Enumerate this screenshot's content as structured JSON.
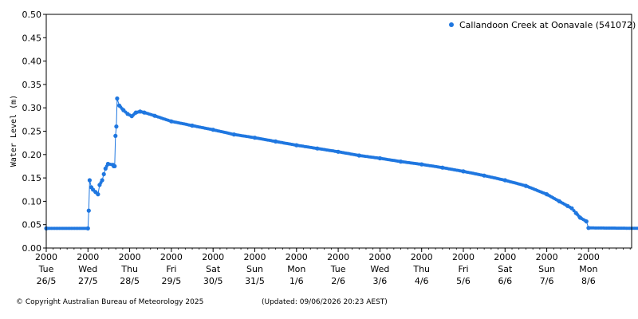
{
  "chart_data": {
    "type": "scatter",
    "ylabel": "Water Level (m)",
    "ylim": [
      0,
      0.5
    ],
    "yticks": [
      "0.00",
      "0.05",
      "0.10",
      "0.15",
      "0.20",
      "0.25",
      "0.30",
      "0.35",
      "0.40",
      "0.45",
      "0.50"
    ],
    "xlim_days": [
      0,
      14.5
    ],
    "xticks": [
      {
        "time": "2000",
        "day": "Tue",
        "date": "26/5"
      },
      {
        "time": "2000",
        "day": "Wed",
        "date": "27/5"
      },
      {
        "time": "2000",
        "day": "Thu",
        "date": "28/5"
      },
      {
        "time": "2000",
        "day": "Fri",
        "date": "29/5"
      },
      {
        "time": "2000",
        "day": "Sat",
        "date": "30/5"
      },
      {
        "time": "2000",
        "day": "Sun",
        "date": "31/5"
      },
      {
        "time": "2000",
        "day": "Mon",
        "date": "1/6"
      },
      {
        "time": "2000",
        "day": "Tue",
        "date": "2/6"
      },
      {
        "time": "2000",
        "day": "Wed",
        "date": "3/6"
      },
      {
        "time": "2000",
        "day": "Thu",
        "date": "4/6"
      },
      {
        "time": "2000",
        "day": "Fri",
        "date": "5/6"
      },
      {
        "time": "2000",
        "day": "Sat",
        "date": "6/6"
      },
      {
        "time": "2000",
        "day": "Sun",
        "date": "7/6"
      },
      {
        "time": "2000",
        "day": "Mon",
        "date": "8/6"
      }
    ],
    "grid": false,
    "legend_position": "top-right",
    "series": [
      {
        "name": "Callandoon Creek at Oonavale (541072)",
        "color": "#1f77e0",
        "points": [
          [
            0.0,
            0.042
          ],
          [
            1.0,
            0.042
          ],
          [
            1.02,
            0.08
          ],
          [
            1.04,
            0.145
          ],
          [
            1.08,
            0.13
          ],
          [
            1.12,
            0.125
          ],
          [
            1.18,
            0.12
          ],
          [
            1.24,
            0.115
          ],
          [
            1.28,
            0.135
          ],
          [
            1.34,
            0.145
          ],
          [
            1.38,
            0.158
          ],
          [
            1.42,
            0.17
          ],
          [
            1.48,
            0.18
          ],
          [
            1.6,
            0.178
          ],
          [
            1.62,
            0.175
          ],
          [
            1.64,
            0.175
          ],
          [
            1.66,
            0.24
          ],
          [
            1.68,
            0.26
          ],
          [
            1.7,
            0.32
          ],
          [
            1.75,
            0.305
          ],
          [
            1.85,
            0.295
          ],
          [
            1.95,
            0.287
          ],
          [
            2.05,
            0.282
          ],
          [
            2.15,
            0.29
          ],
          [
            2.25,
            0.292
          ],
          [
            2.35,
            0.29
          ],
          [
            2.6,
            0.283
          ],
          [
            3.0,
            0.271
          ],
          [
            3.5,
            0.262
          ],
          [
            4.0,
            0.253
          ],
          [
            4.5,
            0.243
          ],
          [
            5.0,
            0.236
          ],
          [
            5.5,
            0.228
          ],
          [
            6.0,
            0.22
          ],
          [
            6.5,
            0.213
          ],
          [
            7.0,
            0.206
          ],
          [
            7.5,
            0.198
          ],
          [
            8.0,
            0.192
          ],
          [
            8.5,
            0.185
          ],
          [
            9.0,
            0.179
          ],
          [
            9.5,
            0.172
          ],
          [
            10.0,
            0.164
          ],
          [
            10.5,
            0.155
          ],
          [
            11.0,
            0.145
          ],
          [
            11.5,
            0.133
          ],
          [
            12.0,
            0.115
          ],
          [
            12.3,
            0.1
          ],
          [
            12.5,
            0.09
          ],
          [
            12.6,
            0.085
          ],
          [
            12.7,
            0.075
          ],
          [
            12.8,
            0.065
          ],
          [
            12.95,
            0.057
          ],
          [
            13.0,
            0.043
          ],
          [
            14.5,
            0.042
          ]
        ]
      }
    ]
  },
  "footer": {
    "copyright": "© Copyright Australian Bureau of Meteorology 2025",
    "updated": "(Updated: 09/06/2026 20:23 AEST)"
  }
}
